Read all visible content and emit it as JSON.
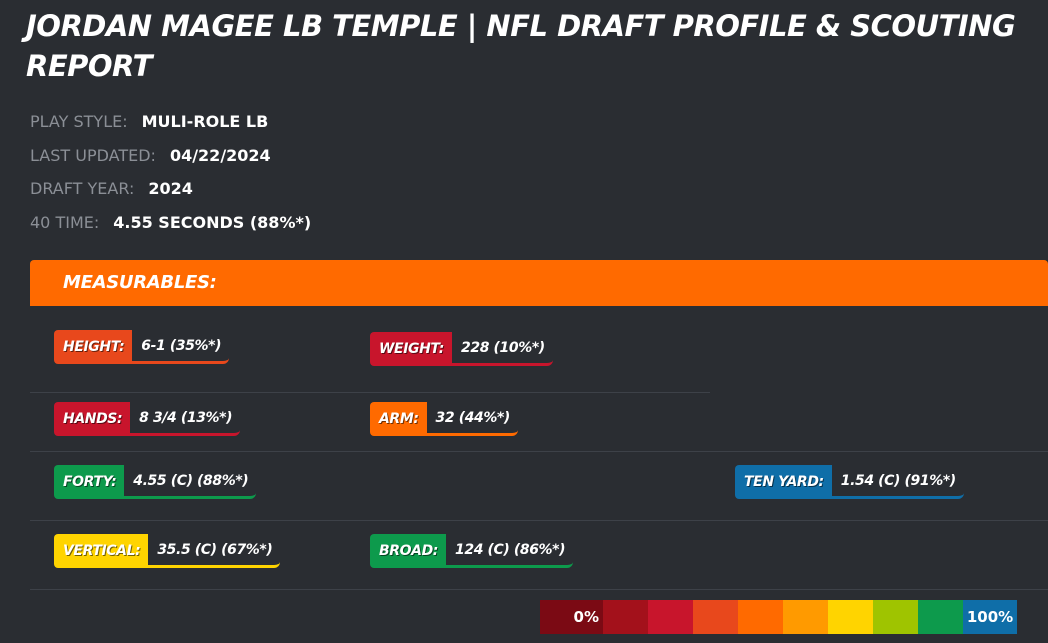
{
  "title": "JORDAN MAGEE LB TEMPLE | NFL DRAFT PROFILE & SCOUTING REPORT",
  "info": {
    "play_style": {
      "label": "PLAY STYLE:",
      "value": "MULI-ROLE LB"
    },
    "last_updated": {
      "label": "LAST UPDATED:",
      "value": "04/22/2024"
    },
    "draft_year": {
      "label": "DRAFT YEAR:",
      "value": "2024"
    },
    "forty_time": {
      "label": "40 TIME:",
      "value": "4.55 SECONDS (88%*)"
    }
  },
  "measurables": {
    "header": "MEASURABLES:",
    "height": {
      "label": "HEIGHT:",
      "value": "6-1 (35%*)",
      "color": "#e8481c"
    },
    "weight": {
      "label": "WEIGHT:",
      "value": "228 (10%*)",
      "color": "#c8152c"
    },
    "hands": {
      "label": "HANDS:",
      "value": "8 3/4 (13%*)",
      "color": "#c8152c"
    },
    "arm": {
      "label": "ARM:",
      "value": "32 (44%*)",
      "color": "#ff6a00"
    },
    "forty": {
      "label": "FORTY:",
      "value": "4.55 (C) (88%*)",
      "color": "#0d9a4c"
    },
    "ten_yard": {
      "label": "TEN YARD:",
      "value": "1.54 (C) (91%*)",
      "color": "#0f6ea8"
    },
    "vertical": {
      "label": "VERTICAL:",
      "value": "35.5 (C) (67%*)",
      "color": "#ffd400"
    },
    "broad": {
      "label": "BROAD:",
      "value": "124 (C) (86%*)",
      "color": "#0d9a4c"
    }
  },
  "scale": {
    "min_label": "0%",
    "max_label": "100%",
    "colors": [
      "#7b0a14",
      "#a3111b",
      "#c8152c",
      "#e8481c",
      "#ff6a00",
      "#ff9a00",
      "#ffd400",
      "#9fc400",
      "#0d9a4c",
      "#0f6ea8"
    ]
  }
}
